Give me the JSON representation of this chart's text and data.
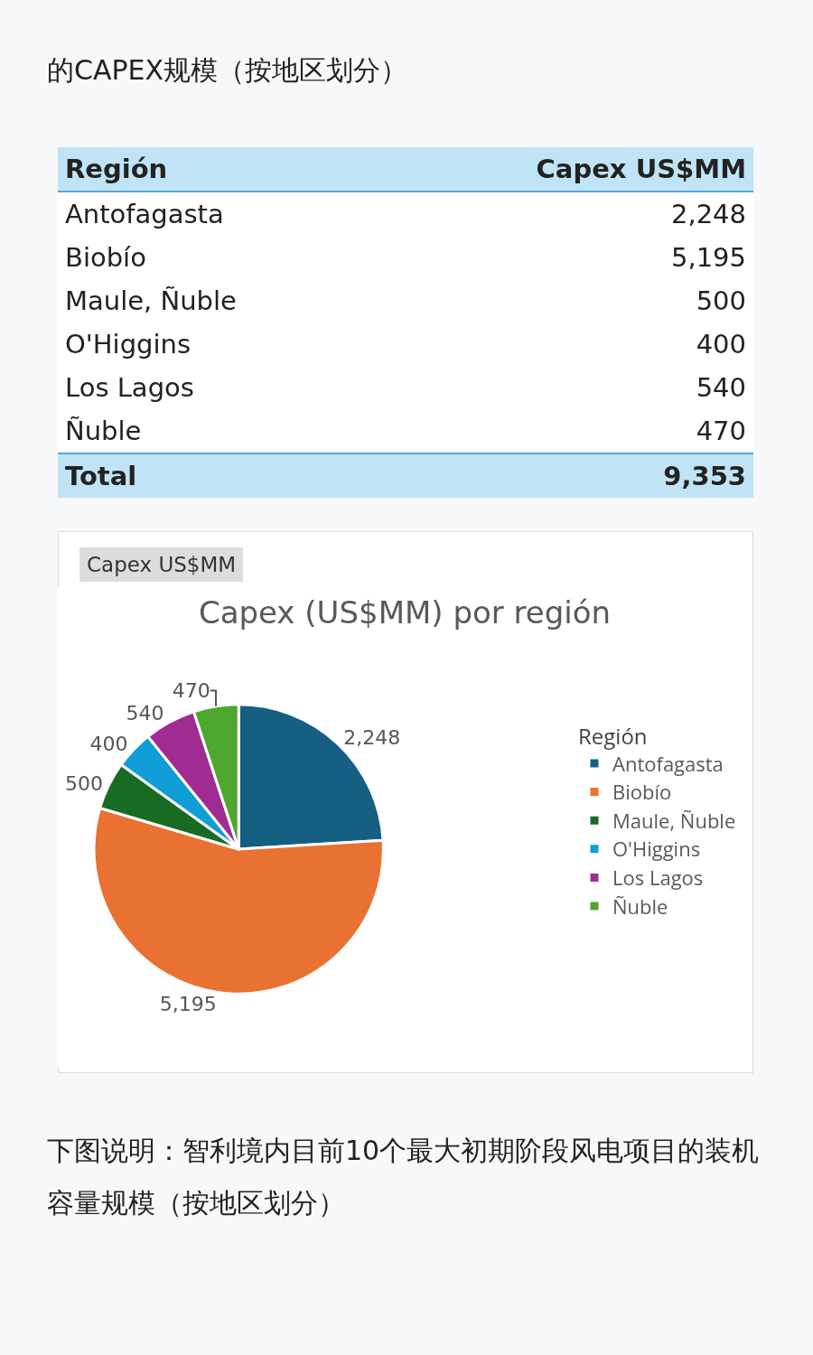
{
  "chart_data": {
    "type": "pie",
    "title": "Capex (US$MM) por región",
    "legend_title": "Región",
    "legend": "right",
    "categories": [
      "Antofagasta",
      "Biobío",
      "Maule, Ñuble",
      "O'Higgins",
      "Los Lagos",
      "Ñuble"
    ],
    "values": [
      2248,
      5195,
      500,
      400,
      540,
      470
    ],
    "value_labels": [
      "2,248",
      "5,195",
      "500",
      "400",
      "540",
      "470"
    ],
    "colors": [
      "#156082",
      "#e97132",
      "#196b24",
      "#0f9ed5",
      "#a02b93",
      "#4ea72e"
    ],
    "data_labels": true,
    "annotations": [
      "的CAPEX规模（按地区划分）",
      "Capex US$MM",
      "下图说明：智利境内目前10个最大初期阶段风电项目的装机容量规模（按地区划分）",
      "Total",
      "9,353"
    ]
  }
}
